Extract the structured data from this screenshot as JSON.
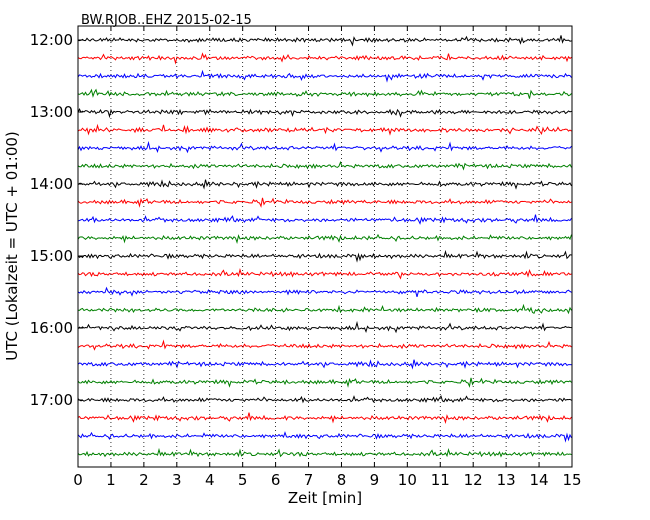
{
  "chart_data": {
    "type": "line",
    "title": "BW.RJOB..EHZ 2015-02-15",
    "xlabel": "Zeit  [min]",
    "ylabel": "UTC (Lokalzeit = UTC + 01:00)",
    "xlim": [
      0,
      15
    ],
    "x_ticks": [
      "0",
      "1",
      "2",
      "3",
      "4",
      "5",
      "6",
      "7",
      "8",
      "9",
      "10",
      "11",
      "12",
      "13",
      "14",
      "15"
    ],
    "y_tick_labels": [
      "12:00",
      "13:00",
      "14:00",
      "15:00",
      "16:00",
      "17:00"
    ],
    "grid": "vertical dotted lines at each minute",
    "trace_colors": [
      "#000000",
      "#ff0000",
      "#0000ff",
      "#008000"
    ],
    "series": [
      {
        "start": "12:00",
        "color": "#000000"
      },
      {
        "start": "12:15",
        "color": "#ff0000"
      },
      {
        "start": "12:30",
        "color": "#0000ff"
      },
      {
        "start": "12:45",
        "color": "#008000"
      },
      {
        "start": "13:00",
        "color": "#000000"
      },
      {
        "start": "13:15",
        "color": "#ff0000"
      },
      {
        "start": "13:30",
        "color": "#0000ff"
      },
      {
        "start": "13:45",
        "color": "#008000"
      },
      {
        "start": "14:00",
        "color": "#000000"
      },
      {
        "start": "14:15",
        "color": "#ff0000"
      },
      {
        "start": "14:30",
        "color": "#0000ff"
      },
      {
        "start": "14:45",
        "color": "#008000"
      },
      {
        "start": "15:00",
        "color": "#000000"
      },
      {
        "start": "15:15",
        "color": "#ff0000"
      },
      {
        "start": "15:30",
        "color": "#0000ff"
      },
      {
        "start": "15:45",
        "color": "#008000"
      },
      {
        "start": "16:00",
        "color": "#000000"
      },
      {
        "start": "16:15",
        "color": "#ff0000"
      },
      {
        "start": "16:30",
        "color": "#0000ff"
      },
      {
        "start": "16:45",
        "color": "#008000"
      },
      {
        "start": "17:00",
        "color": "#000000"
      },
      {
        "start": "17:15",
        "color": "#ff0000"
      },
      {
        "start": "17:30",
        "color": "#0000ff"
      },
      {
        "start": "17:45",
        "color": "#008000"
      }
    ]
  }
}
